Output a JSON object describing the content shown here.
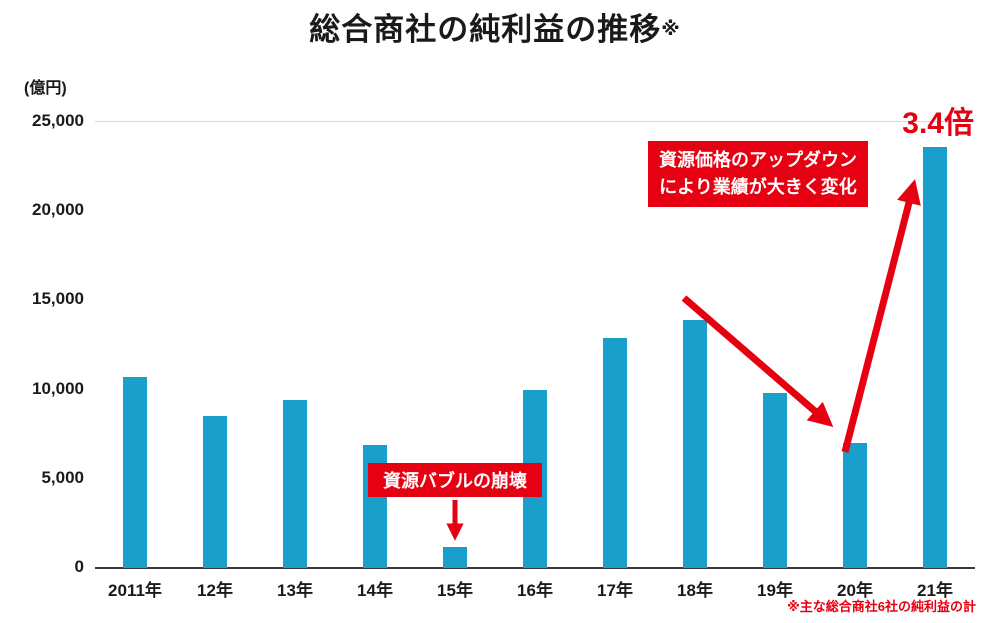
{
  "title": {
    "main": "総合商社の純利益の推移",
    "suffix": "※"
  },
  "y_axis": {
    "unit": "(億円)"
  },
  "annotations": {
    "bubble_collapse": "資源バブルの崩壊",
    "updown_line1": "資源価格のアップダウン",
    "updown_line2": "により業績が大きく変化",
    "multiplier": "3.4倍"
  },
  "footnote": "※主な総合商社6社の純利益の計",
  "colors": {
    "bar": "#1a9fca",
    "red": "#e60012",
    "axis": "#3a3a3a"
  },
  "chart_data": {
    "type": "bar",
    "title": "総合商社の純利益の推移",
    "xlabel": "",
    "ylabel": "(億円)",
    "categories": [
      "2011年",
      "12年",
      "13年",
      "14年",
      "15年",
      "16年",
      "17年",
      "18年",
      "19年",
      "20年",
      "21年"
    ],
    "values": [
      10700,
      8500,
      9400,
      6900,
      1200,
      10000,
      12900,
      13900,
      9800,
      7000,
      23600
    ],
    "ylim": [
      0,
      25000
    ],
    "yticks": [
      0,
      5000,
      10000,
      15000,
      20000,
      25000
    ],
    "grid": false,
    "legend": false,
    "annotations_meaning": [
      {
        "text": "資源バブルの崩壊",
        "target_category": "15年"
      },
      {
        "text": "資源価格のアップダウン により業績が大きく変化",
        "target_categories": [
          "20年",
          "21年"
        ]
      },
      {
        "text": "3.4倍",
        "target_category": "21年"
      }
    ]
  }
}
